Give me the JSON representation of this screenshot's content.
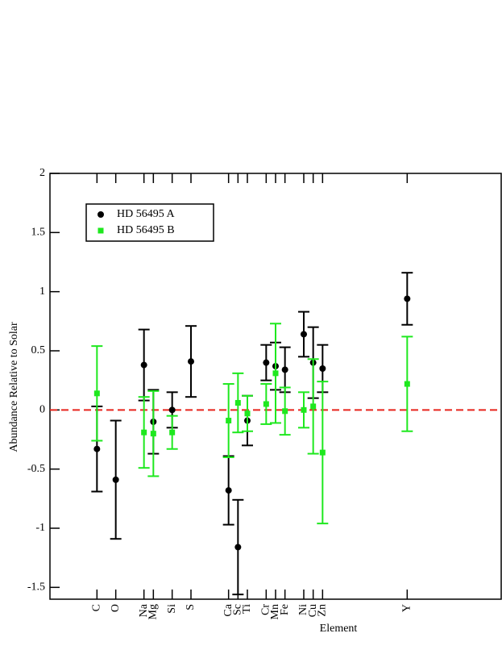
{
  "chart_data": {
    "type": "errorbar-scatter",
    "xlabel": "Element",
    "ylabel": "Abundance Relative to Solar",
    "xlim": [
      1,
      49
    ],
    "ylim": [
      -1.6,
      2
    ],
    "xticks": [
      {
        "value": 6,
        "label": "C"
      },
      {
        "value": 8,
        "label": "O"
      },
      {
        "value": 11,
        "label": "Na"
      },
      {
        "value": 12,
        "label": "Mg"
      },
      {
        "value": 14,
        "label": "Si"
      },
      {
        "value": 16,
        "label": "S"
      },
      {
        "value": 20,
        "label": "Ca"
      },
      {
        "value": 21,
        "label": "Sc"
      },
      {
        "value": 22,
        "label": "Ti"
      },
      {
        "value": 24,
        "label": "Cr"
      },
      {
        "value": 25,
        "label": "Mn"
      },
      {
        "value": 26,
        "label": "Fe"
      },
      {
        "value": 28,
        "label": "Ni"
      },
      {
        "value": 29,
        "label": "Cu"
      },
      {
        "value": 30,
        "label": "Zn"
      },
      {
        "value": 39,
        "label": "Y"
      }
    ],
    "yticks": [
      -1.5,
      -1,
      -0.5,
      0,
      0.5,
      1,
      1.5,
      2
    ],
    "hline": {
      "value": 0,
      "color": "#e8251c"
    },
    "legend": "upper left",
    "series": [
      {
        "name": "HD 56495 A",
        "color": "#000000",
        "marker": "circle",
        "x": [
          6,
          8,
          11,
          12,
          14,
          16,
          20,
          21,
          22,
          24,
          25,
          26,
          28,
          29,
          30,
          39
        ],
        "values": [
          -0.33,
          -0.59,
          0.38,
          -0.1,
          0.0,
          0.41,
          -0.68,
          -1.16,
          -0.09,
          0.4,
          0.37,
          0.34,
          0.64,
          0.4,
          0.35,
          0.94
        ],
        "errors": [
          0.36,
          0.5,
          0.3,
          0.27,
          0.15,
          0.3,
          0.29,
          0.4,
          0.21,
          0.15,
          0.2,
          0.19,
          0.19,
          0.3,
          0.2,
          0.22
        ]
      },
      {
        "name": "HD 56495 B",
        "color": "#1ee81e",
        "marker": "square",
        "x": [
          6,
          11,
          12,
          14,
          20,
          21,
          22,
          24,
          25,
          26,
          28,
          29,
          30,
          39
        ],
        "values": [
          0.14,
          -0.19,
          -0.2,
          -0.19,
          -0.09,
          0.06,
          -0.03,
          0.05,
          0.31,
          -0.01,
          0.0,
          0.03,
          -0.36,
          0.22
        ],
        "errors": [
          0.4,
          0.3,
          0.36,
          0.14,
          0.31,
          0.25,
          0.15,
          0.17,
          0.42,
          0.2,
          0.15,
          0.4,
          0.6,
          0.4
        ]
      }
    ]
  }
}
